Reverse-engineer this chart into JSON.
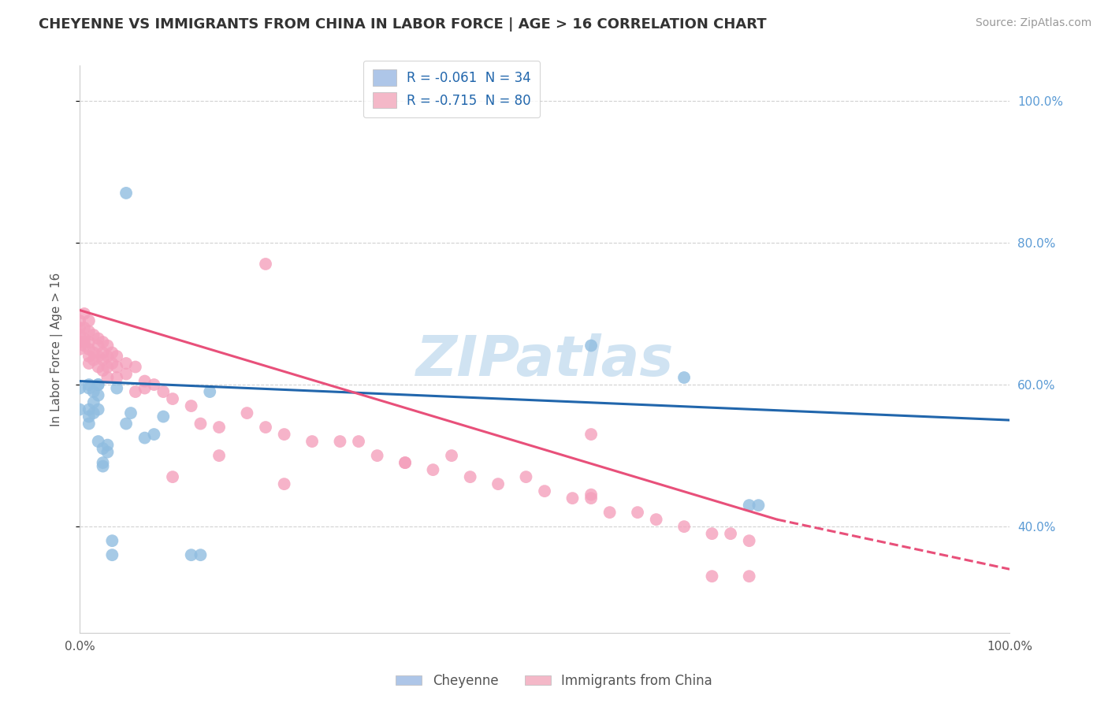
{
  "title": "CHEYENNE VS IMMIGRANTS FROM CHINA IN LABOR FORCE | AGE > 16 CORRELATION CHART",
  "source": "Source: ZipAtlas.com",
  "ylabel": "In Labor Force | Age > 16",
  "xlim": [
    0.0,
    100.0
  ],
  "ylim": [
    25.0,
    105.0
  ],
  "cheyenne_color": "#90bde0",
  "china_color": "#f4a0bc",
  "cheyenne_line_color": "#2166ac",
  "china_line_color": "#e8507a",
  "watermark_text": "ZIPatlas",
  "watermark_color": "#c8dff0",
  "cheyenne_scatter": [
    [
      0.0,
      59.5
    ],
    [
      0.0,
      56.5
    ],
    [
      1.0,
      59.5
    ],
    [
      1.0,
      56.5
    ],
    [
      1.0,
      55.5
    ],
    [
      1.0,
      54.5
    ],
    [
      1.0,
      60.0
    ],
    [
      1.5,
      56.0
    ],
    [
      1.5,
      59.0
    ],
    [
      1.5,
      57.5
    ],
    [
      2.0,
      60.0
    ],
    [
      2.0,
      58.5
    ],
    [
      2.0,
      60.0
    ],
    [
      2.0,
      56.5
    ],
    [
      2.0,
      52.0
    ],
    [
      2.5,
      48.5
    ],
    [
      2.5,
      49.0
    ],
    [
      2.5,
      51.0
    ],
    [
      3.0,
      50.5
    ],
    [
      3.0,
      51.5
    ],
    [
      3.5,
      38.0
    ],
    [
      3.5,
      36.0
    ],
    [
      4.0,
      59.5
    ],
    [
      5.0,
      54.5
    ],
    [
      5.5,
      56.0
    ],
    [
      7.0,
      52.5
    ],
    [
      9.0,
      55.5
    ],
    [
      12.0,
      36.0
    ],
    [
      13.0,
      36.0
    ],
    [
      14.0,
      59.0
    ],
    [
      55.0,
      65.5
    ],
    [
      65.0,
      61.0
    ],
    [
      72.0,
      43.0
    ],
    [
      73.0,
      43.0
    ],
    [
      5.0,
      87.0
    ],
    [
      8.0,
      53.0
    ]
  ],
  "china_scatter": [
    [
      0.0,
      68.0
    ],
    [
      0.0,
      66.0
    ],
    [
      0.0,
      65.0
    ],
    [
      0.0,
      67.0
    ],
    [
      0.0,
      69.0
    ],
    [
      0.5,
      70.0
    ],
    [
      0.5,
      68.0
    ],
    [
      0.5,
      66.5
    ],
    [
      0.5,
      66.0
    ],
    [
      0.5,
      65.5
    ],
    [
      1.0,
      69.0
    ],
    [
      1.0,
      67.5
    ],
    [
      1.0,
      66.0
    ],
    [
      1.0,
      64.0
    ],
    [
      1.0,
      65.0
    ],
    [
      1.0,
      63.0
    ],
    [
      1.5,
      67.0
    ],
    [
      1.5,
      64.5
    ],
    [
      1.5,
      63.5
    ],
    [
      2.0,
      66.5
    ],
    [
      2.0,
      65.5
    ],
    [
      2.0,
      64.0
    ],
    [
      2.0,
      62.5
    ],
    [
      2.5,
      66.0
    ],
    [
      2.5,
      64.5
    ],
    [
      2.5,
      63.5
    ],
    [
      2.5,
      62.0
    ],
    [
      3.0,
      65.5
    ],
    [
      3.0,
      64.0
    ],
    [
      3.0,
      62.5
    ],
    [
      3.0,
      61.0
    ],
    [
      3.5,
      64.5
    ],
    [
      3.5,
      63.0
    ],
    [
      4.0,
      64.0
    ],
    [
      4.0,
      62.5
    ],
    [
      4.0,
      61.0
    ],
    [
      5.0,
      63.0
    ],
    [
      5.0,
      61.5
    ],
    [
      6.0,
      62.5
    ],
    [
      6.0,
      59.0
    ],
    [
      7.0,
      60.5
    ],
    [
      7.0,
      59.5
    ],
    [
      8.0,
      60.0
    ],
    [
      9.0,
      59.0
    ],
    [
      10.0,
      58.0
    ],
    [
      12.0,
      57.0
    ],
    [
      13.0,
      54.5
    ],
    [
      15.0,
      54.0
    ],
    [
      18.0,
      56.0
    ],
    [
      20.0,
      54.0
    ],
    [
      22.0,
      53.0
    ],
    [
      25.0,
      52.0
    ],
    [
      28.0,
      52.0
    ],
    [
      30.0,
      52.0
    ],
    [
      32.0,
      50.0
    ],
    [
      35.0,
      49.0
    ],
    [
      38.0,
      48.0
    ],
    [
      40.0,
      50.0
    ],
    [
      42.0,
      47.0
    ],
    [
      45.0,
      46.0
    ],
    [
      48.0,
      47.0
    ],
    [
      50.0,
      45.0
    ],
    [
      53.0,
      44.0
    ],
    [
      55.0,
      44.0
    ],
    [
      55.0,
      44.5
    ],
    [
      57.0,
      42.0
    ],
    [
      60.0,
      42.0
    ],
    [
      62.0,
      41.0
    ],
    [
      65.0,
      40.0
    ],
    [
      68.0,
      39.0
    ],
    [
      70.0,
      39.0
    ],
    [
      72.0,
      38.0
    ],
    [
      35.0,
      49.0
    ],
    [
      10.0,
      47.0
    ],
    [
      22.0,
      46.0
    ],
    [
      20.0,
      77.0
    ],
    [
      68.0,
      33.0
    ],
    [
      72.0,
      33.0
    ],
    [
      55.0,
      53.0
    ],
    [
      15.0,
      50.0
    ]
  ],
  "cheyenne_line": [
    0.0,
    60.5,
    100.0,
    55.0
  ],
  "china_line_solid": [
    0.0,
    70.5,
    75.0,
    41.0
  ],
  "china_line_dashed": [
    75.0,
    41.0,
    100.0,
    34.0
  ]
}
